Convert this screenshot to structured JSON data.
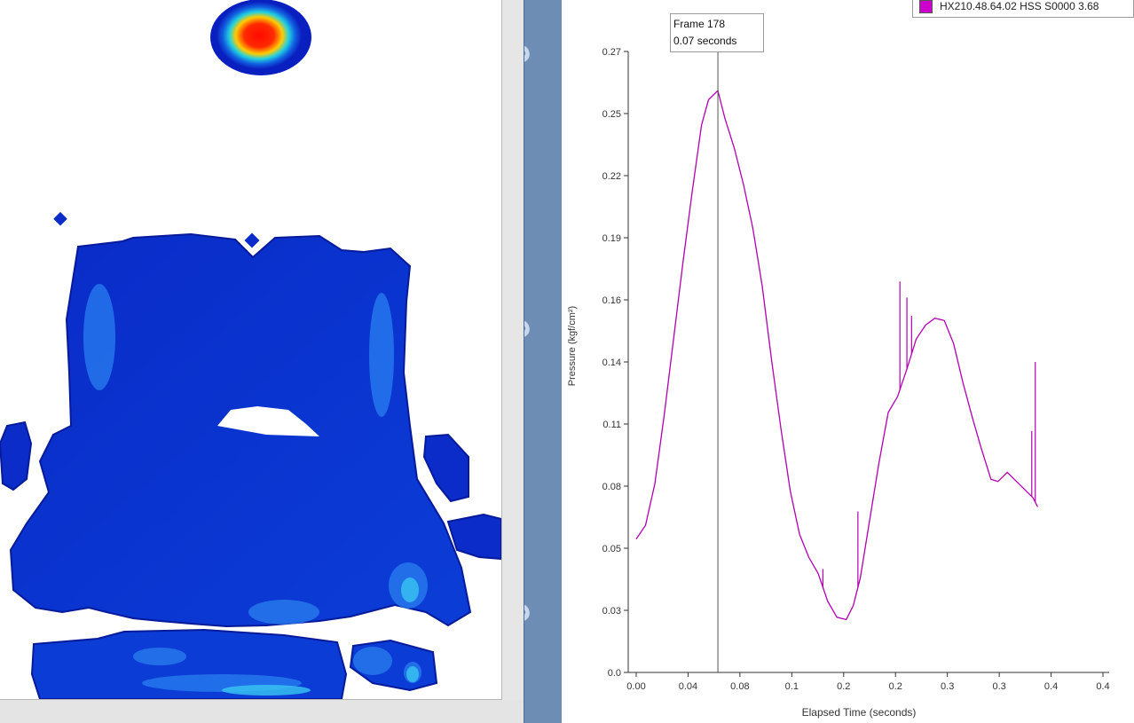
{
  "window": {
    "legend_label": "HX210.48.64.02 HSS S0000 3.68",
    "legend_color": "#cc00cc"
  },
  "pressure_map": {
    "colormap": [
      "#0a1fbf",
      "#0b3dd6",
      "#1a73e8",
      "#27c4f0",
      "#ffee00",
      "#ff2200"
    ],
    "background": "#ffffff"
  },
  "splitter": {
    "watermark": [
      "8.0",
      "8.0",
      "8.0"
    ],
    "color": "#6d8db5"
  },
  "cursor": {
    "frame_text": "Frame 178",
    "time_text": "0.07 seconds",
    "x": 0.07
  },
  "chart_data": {
    "type": "line",
    "xlabel": "Elapsed Time (seconds)",
    "ylabel": "Pressure (kgf/cm²)",
    "x_tick_labels": [
      "0.00",
      "0.04",
      "0.08",
      "0.1",
      "0.2",
      "0.2",
      "0.3",
      "0.3",
      "0.4",
      "0.4"
    ],
    "y_tick_labels": [
      "0.0",
      "0.03",
      "0.05",
      "0.08",
      "0.11",
      "0.14",
      "0.16",
      "0.19",
      "0.22",
      "0.25",
      "0.27"
    ],
    "xlim": [
      0,
      0.4
    ],
    "ylim": [
      0,
      0.27
    ],
    "grid": false,
    "legend_position": "top-right",
    "series": [
      {
        "name": "HX210.48.64.02 HSS S0000 3.68",
        "color": "#b000b0",
        "points": [
          [
            0.0,
            0.058
          ],
          [
            0.008,
            0.064
          ],
          [
            0.016,
            0.082
          ],
          [
            0.024,
            0.112
          ],
          [
            0.032,
            0.145
          ],
          [
            0.04,
            0.178
          ],
          [
            0.048,
            0.209
          ],
          [
            0.056,
            0.238
          ],
          [
            0.062,
            0.249
          ],
          [
            0.07,
            0.253
          ],
          [
            0.076,
            0.241
          ],
          [
            0.084,
            0.228
          ],
          [
            0.092,
            0.212
          ],
          [
            0.1,
            0.193
          ],
          [
            0.108,
            0.168
          ],
          [
            0.116,
            0.136
          ],
          [
            0.124,
            0.106
          ],
          [
            0.132,
            0.079
          ],
          [
            0.14,
            0.06
          ],
          [
            0.148,
            0.05
          ],
          [
            0.156,
            0.043
          ],
          [
            0.164,
            0.031
          ],
          [
            0.172,
            0.024
          ],
          [
            0.18,
            0.023
          ],
          [
            0.186,
            0.029
          ],
          [
            0.192,
            0.041
          ],
          [
            0.2,
            0.066
          ],
          [
            0.208,
            0.091
          ],
          [
            0.216,
            0.113
          ],
          [
            0.224,
            0.12
          ],
          [
            0.232,
            0.132
          ],
          [
            0.24,
            0.145
          ],
          [
            0.248,
            0.151
          ],
          [
            0.256,
            0.154
          ],
          [
            0.264,
            0.153
          ],
          [
            0.272,
            0.143
          ],
          [
            0.28,
            0.126
          ],
          [
            0.288,
            0.111
          ],
          [
            0.296,
            0.097
          ],
          [
            0.304,
            0.084
          ],
          [
            0.31,
            0.083
          ],
          [
            0.318,
            0.087
          ],
          [
            0.326,
            0.083
          ],
          [
            0.334,
            0.079
          ],
          [
            0.34,
            0.076
          ],
          [
            0.344,
            0.072
          ]
        ],
        "spikes": [
          [
            0.16,
            0.045
          ],
          [
            0.19,
            0.07
          ],
          [
            0.226,
            0.17
          ],
          [
            0.232,
            0.163
          ],
          [
            0.236,
            0.155
          ],
          [
            0.342,
            0.135
          ],
          [
            0.339,
            0.105
          ]
        ]
      }
    ]
  }
}
